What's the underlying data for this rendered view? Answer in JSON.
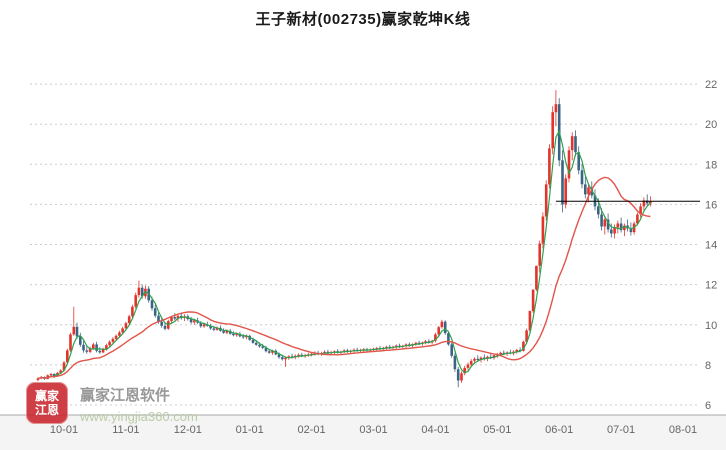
{
  "title": "王子新材(002735)赢家乾坤K线",
  "watermark": {
    "logo_text": "赢家江恩",
    "brand": "赢家江恩软件",
    "url": "www.yingjia360.com"
  },
  "colors": {
    "up": "#e2342b",
    "down": "#3b6484",
    "ma_fast": "#2fa14e",
    "ma_slow": "#e2554a",
    "grid": "#cccccc",
    "axis_text": "#666666",
    "last_price_line": "#000000",
    "axis_strip": "#f4f4f4",
    "axis_line": "#a8a8a8"
  },
  "chart_data": {
    "type": "candlestick",
    "title": "王子新材(002735)赢家乾坤K线",
    "x_tick_labels": [
      "10-01",
      "11-01",
      "12-01",
      "01-01",
      "02-01",
      "03-01",
      "04-01",
      "05-01",
      "06-01",
      "07-01",
      "08-01"
    ],
    "y_ticks": [
      6,
      8,
      10,
      12,
      14,
      16,
      18,
      20,
      22
    ],
    "ylim": [
      5.5,
      23.8
    ],
    "last_price": 16.16,
    "candles_per_month": 19,
    "pre_candles": 8,
    "ma_windows": {
      "fast": 4,
      "slow": 20
    },
    "ohlc": [
      [
        7.25,
        7.38,
        7.18,
        7.32
      ],
      [
        7.32,
        7.45,
        7.28,
        7.4
      ],
      [
        7.4,
        7.42,
        7.25,
        7.3
      ],
      [
        7.3,
        7.52,
        7.28,
        7.48
      ],
      [
        7.48,
        7.6,
        7.4,
        7.55
      ],
      [
        7.55,
        7.58,
        7.35,
        7.42
      ],
      [
        7.42,
        7.65,
        7.4,
        7.6
      ],
      [
        7.6,
        7.78,
        7.55,
        7.72
      ],
      [
        7.72,
        8.2,
        7.68,
        8.12
      ],
      [
        8.12,
        8.8,
        8.05,
        8.72
      ],
      [
        8.72,
        9.6,
        8.65,
        9.52
      ],
      [
        9.52,
        10.9,
        9.45,
        9.9
      ],
      [
        9.9,
        10.1,
        9.3,
        9.42
      ],
      [
        9.42,
        9.6,
        8.9,
        9.0
      ],
      [
        9.0,
        9.2,
        8.6,
        8.72
      ],
      [
        8.72,
        8.95,
        8.55,
        8.65
      ],
      [
        8.65,
        8.9,
        8.58,
        8.82
      ],
      [
        8.82,
        9.1,
        8.75,
        9.02
      ],
      [
        9.02,
        9.15,
        8.62,
        8.7
      ],
      [
        8.7,
        8.88,
        8.55,
        8.62
      ],
      [
        8.62,
        8.85,
        8.58,
        8.78
      ],
      [
        8.78,
        9.05,
        8.7,
        8.98
      ],
      [
        8.98,
        9.22,
        8.9,
        9.15
      ],
      [
        9.15,
        9.38,
        9.05,
        9.3
      ],
      [
        9.3,
        9.52,
        9.22,
        9.45
      ],
      [
        9.45,
        9.7,
        9.38,
        9.62
      ],
      [
        9.62,
        9.9,
        9.55,
        9.82
      ],
      [
        9.82,
        10.15,
        9.75,
        10.08
      ],
      [
        10.08,
        10.5,
        10.0,
        10.42
      ],
      [
        10.42,
        11.0,
        10.35,
        10.9
      ],
      [
        10.9,
        11.6,
        10.8,
        11.48
      ],
      [
        11.48,
        12.2,
        11.35,
        11.85
      ],
      [
        11.85,
        12.0,
        11.3,
        11.42
      ],
      [
        11.42,
        11.95,
        11.3,
        11.8
      ],
      [
        11.8,
        11.92,
        11.1,
        11.22
      ],
      [
        11.22,
        11.4,
        10.7,
        10.82
      ],
      [
        10.82,
        11.0,
        10.35,
        10.45
      ],
      [
        10.45,
        10.65,
        10.05,
        10.15
      ],
      [
        10.15,
        10.4,
        9.85,
        9.95
      ],
      [
        9.95,
        10.12,
        9.72,
        9.8
      ],
      [
        9.8,
        10.25,
        9.75,
        10.18
      ],
      [
        10.18,
        10.45,
        10.08,
        10.38
      ],
      [
        10.38,
        10.58,
        10.22,
        10.3
      ],
      [
        10.3,
        10.5,
        10.15,
        10.44
      ],
      [
        10.44,
        10.6,
        10.25,
        10.35
      ],
      [
        10.35,
        10.52,
        10.18,
        10.42
      ],
      [
        10.42,
        10.52,
        10.2,
        10.28
      ],
      [
        10.28,
        10.4,
        10.05,
        10.12
      ],
      [
        10.12,
        10.3,
        10.0,
        10.22
      ],
      [
        10.22,
        10.35,
        10.05,
        10.1
      ],
      [
        10.1,
        10.18,
        9.85,
        9.92
      ],
      [
        9.92,
        10.1,
        9.85,
        10.02
      ],
      [
        10.02,
        10.15,
        9.9,
        9.95
      ],
      [
        9.95,
        10.05,
        9.75,
        9.82
      ],
      [
        9.82,
        9.95,
        9.68,
        9.75
      ],
      [
        9.75,
        9.92,
        9.7,
        9.85
      ],
      [
        9.85,
        9.95,
        9.65,
        9.7
      ],
      [
        9.7,
        9.82,
        9.55,
        9.6
      ],
      [
        9.6,
        9.78,
        9.52,
        9.7
      ],
      [
        9.7,
        9.8,
        9.5,
        9.55
      ],
      [
        9.55,
        9.68,
        9.42,
        9.48
      ],
      [
        9.48,
        9.62,
        9.4,
        9.55
      ],
      [
        9.55,
        9.65,
        9.38,
        9.42
      ],
      [
        9.42,
        9.55,
        9.3,
        9.38
      ],
      [
        9.38,
        9.52,
        9.28,
        9.45
      ],
      [
        9.45,
        9.5,
        9.2,
        9.25
      ],
      [
        9.25,
        9.35,
        9.05,
        9.1
      ],
      [
        9.1,
        9.22,
        8.95,
        9.0
      ],
      [
        9.0,
        9.12,
        8.85,
        8.92
      ],
      [
        8.92,
        9.05,
        8.78,
        8.85
      ],
      [
        8.85,
        8.95,
        8.62,
        8.68
      ],
      [
        8.68,
        8.8,
        8.55,
        8.6
      ],
      [
        8.6,
        8.75,
        8.5,
        8.7
      ],
      [
        8.7,
        8.78,
        8.48,
        8.52
      ],
      [
        8.52,
        8.62,
        8.3,
        8.38
      ],
      [
        8.38,
        8.5,
        8.22,
        8.28
      ],
      [
        8.28,
        8.42,
        7.9,
        8.35
      ],
      [
        8.35,
        8.48,
        8.25,
        8.42
      ],
      [
        8.42,
        8.55,
        8.32,
        8.38
      ],
      [
        8.38,
        8.52,
        8.28,
        8.45
      ],
      [
        8.45,
        8.58,
        8.35,
        8.5
      ],
      [
        8.5,
        8.6,
        8.38,
        8.42
      ],
      [
        8.42,
        8.55,
        8.35,
        8.48
      ],
      [
        8.48,
        8.6,
        8.4,
        8.52
      ],
      [
        8.52,
        8.62,
        8.42,
        8.55
      ],
      [
        8.55,
        8.68,
        8.45,
        8.6
      ],
      [
        8.6,
        8.7,
        8.48,
        8.52
      ],
      [
        8.52,
        8.65,
        8.45,
        8.58
      ],
      [
        8.58,
        8.72,
        8.5,
        8.65
      ],
      [
        8.65,
        8.75,
        8.52,
        8.58
      ],
      [
        8.58,
        8.7,
        8.48,
        8.62
      ],
      [
        8.62,
        8.72,
        8.52,
        8.68
      ],
      [
        8.68,
        8.78,
        8.55,
        8.6
      ],
      [
        8.6,
        8.7,
        8.5,
        8.65
      ],
      [
        8.65,
        8.78,
        8.58,
        8.72
      ],
      [
        8.72,
        8.8,
        8.6,
        8.66
      ],
      [
        8.66,
        8.76,
        8.55,
        8.7
      ],
      [
        8.7,
        8.82,
        8.62,
        8.75
      ],
      [
        8.75,
        8.85,
        8.65,
        8.7
      ],
      [
        8.7,
        8.8,
        8.6,
        8.74
      ],
      [
        8.74,
        8.84,
        8.64,
        8.78
      ],
      [
        8.78,
        8.85,
        8.66,
        8.72
      ],
      [
        8.72,
        8.82,
        8.62,
        8.76
      ],
      [
        8.76,
        8.86,
        8.66,
        8.8
      ],
      [
        8.8,
        8.9,
        8.7,
        8.84
      ],
      [
        8.84,
        8.94,
        8.72,
        8.78
      ],
      [
        8.78,
        8.9,
        8.68,
        8.85
      ],
      [
        8.85,
        8.96,
        8.75,
        8.9
      ],
      [
        8.9,
        9.0,
        8.78,
        8.84
      ],
      [
        8.84,
        8.95,
        8.74,
        8.9
      ],
      [
        8.9,
        9.02,
        8.8,
        8.96
      ],
      [
        8.96,
        9.06,
        8.84,
        8.9
      ],
      [
        8.9,
        9.0,
        8.8,
        8.95
      ],
      [
        8.95,
        9.08,
        8.85,
        9.02
      ],
      [
        9.02,
        9.12,
        8.9,
        8.96
      ],
      [
        8.96,
        9.08,
        8.86,
        9.04
      ],
      [
        9.04,
        9.15,
        8.94,
        9.1
      ],
      [
        9.1,
        9.2,
        8.98,
        9.05
      ],
      [
        9.05,
        9.16,
        8.95,
        9.12
      ],
      [
        9.12,
        9.24,
        9.02,
        9.18
      ],
      [
        9.18,
        9.28,
        9.06,
        9.12
      ],
      [
        9.12,
        9.25,
        9.02,
        9.2
      ],
      [
        9.2,
        9.6,
        9.12,
        9.52
      ],
      [
        9.52,
        9.95,
        9.45,
        9.88
      ],
      [
        9.88,
        10.25,
        9.8,
        10.15
      ],
      [
        10.15,
        10.22,
        9.5,
        9.58
      ],
      [
        9.58,
        9.7,
        8.95,
        9.02
      ],
      [
        9.02,
        9.15,
        8.35,
        8.45
      ],
      [
        8.45,
        8.58,
        7.65,
        7.78
      ],
      [
        7.78,
        7.9,
        6.88,
        7.22
      ],
      [
        7.22,
        7.68,
        7.1,
        7.58
      ],
      [
        7.58,
        7.95,
        7.48,
        7.85
      ],
      [
        7.85,
        8.12,
        7.72,
        8.02
      ],
      [
        8.02,
        8.28,
        7.92,
        8.2
      ],
      [
        8.2,
        8.38,
        8.05,
        8.3
      ],
      [
        8.3,
        8.48,
        8.15,
        8.24
      ],
      [
        8.24,
        8.42,
        8.12,
        8.36
      ],
      [
        8.36,
        8.52,
        8.22,
        8.3
      ],
      [
        8.3,
        8.46,
        8.18,
        8.4
      ],
      [
        8.4,
        8.55,
        8.28,
        8.35
      ],
      [
        8.35,
        8.5,
        8.25,
        8.48
      ],
      [
        8.48,
        8.6,
        8.35,
        8.52
      ],
      [
        8.52,
        8.66,
        8.42,
        8.6
      ],
      [
        8.6,
        8.72,
        8.48,
        8.55
      ],
      [
        8.55,
        8.68,
        8.44,
        8.62
      ],
      [
        8.62,
        8.76,
        8.52,
        8.58
      ],
      [
        8.58,
        8.72,
        8.48,
        8.66
      ],
      [
        8.66,
        8.8,
        8.56,
        8.74
      ],
      [
        8.74,
        8.88,
        8.62,
        8.7
      ],
      [
        8.7,
        9.2,
        8.66,
        9.15
      ],
      [
        9.15,
        9.8,
        9.1,
        9.72
      ],
      [
        9.72,
        10.69,
        9.65,
        10.69
      ],
      [
        10.69,
        11.76,
        10.6,
        11.76
      ],
      [
        11.76,
        12.94,
        11.68,
        12.94
      ],
      [
        12.94,
        14.2,
        12.6,
        14.05
      ],
      [
        14.05,
        15.6,
        13.8,
        15.4
      ],
      [
        15.4,
        17.2,
        15.2,
        17.0
      ],
      [
        17.0,
        19.0,
        16.8,
        18.8
      ],
      [
        18.8,
        20.9,
        18.5,
        20.6
      ],
      [
        20.6,
        21.7,
        19.9,
        21.0
      ],
      [
        21.0,
        21.3,
        17.9,
        18.2
      ],
      [
        18.2,
        18.7,
        15.6,
        16.0
      ],
      [
        16.0,
        17.5,
        15.8,
        17.3
      ],
      [
        17.3,
        18.9,
        17.1,
        18.7
      ],
      [
        18.7,
        19.6,
        18.2,
        19.4
      ],
      [
        19.4,
        19.7,
        18.4,
        18.6
      ],
      [
        18.6,
        18.9,
        17.5,
        17.7
      ],
      [
        17.7,
        18.0,
        16.8,
        17.0
      ],
      [
        17.0,
        17.4,
        16.3,
        16.5
      ],
      [
        16.5,
        17.0,
        16.1,
        16.85
      ],
      [
        16.85,
        17.15,
        16.3,
        16.45
      ],
      [
        16.45,
        16.75,
        15.7,
        15.9
      ],
      [
        15.9,
        16.3,
        15.3,
        15.5
      ],
      [
        15.5,
        15.8,
        14.7,
        14.9
      ],
      [
        14.9,
        15.4,
        14.5,
        15.25
      ],
      [
        15.25,
        15.55,
        14.6,
        14.75
      ],
      [
        14.75,
        15.05,
        14.35,
        14.55
      ],
      [
        14.55,
        15.0,
        14.3,
        14.85
      ],
      [
        14.85,
        15.2,
        14.55,
        15.05
      ],
      [
        15.05,
        15.35,
        14.6,
        14.72
      ],
      [
        14.72,
        15.05,
        14.42,
        14.95
      ],
      [
        14.95,
        15.25,
        14.65,
        14.8
      ],
      [
        14.8,
        15.1,
        14.45,
        14.62
      ],
      [
        14.62,
        15.15,
        14.5,
        15.05
      ],
      [
        15.05,
        15.6,
        14.95,
        15.5
      ],
      [
        15.5,
        16.05,
        15.35,
        15.9
      ],
      [
        15.9,
        16.35,
        15.7,
        16.2
      ],
      [
        16.2,
        16.5,
        15.95,
        16.05
      ],
      [
        16.05,
        16.4,
        15.9,
        16.16
      ]
    ]
  }
}
